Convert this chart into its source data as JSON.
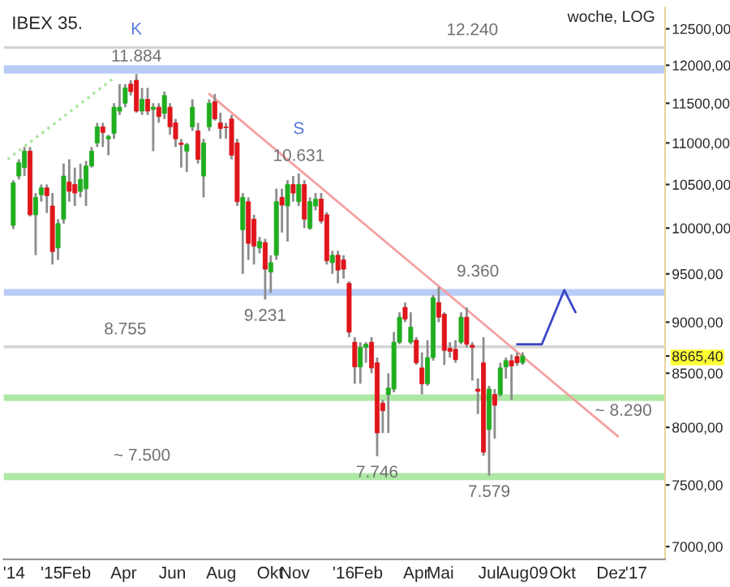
{
  "chart_data": {
    "type": "candlestick",
    "title": "IBEX 35.",
    "log": true,
    "x": [
      "2014-11-14",
      "2014-11-21",
      "2014-11-28",
      "2014-12-05",
      "2014-12-12",
      "2014-12-19",
      "2014-12-26",
      "2015-01-02",
      "2015-01-09",
      "2015-01-16",
      "2015-01-23",
      "2015-01-30",
      "2015-02-06",
      "2015-02-13",
      "2015-02-20",
      "2015-02-27",
      "2015-03-06",
      "2015-03-13",
      "2015-03-20",
      "2015-03-27",
      "2015-04-03",
      "2015-04-10",
      "2015-04-17",
      "2015-04-24",
      "2015-05-01",
      "2015-05-08",
      "2015-05-15",
      "2015-05-22",
      "2015-05-29",
      "2015-06-05",
      "2015-06-12",
      "2015-06-19",
      "2015-06-26",
      "2015-07-03",
      "2015-07-10",
      "2015-07-17",
      "2015-07-24",
      "2015-07-31",
      "2015-08-07",
      "2015-08-14",
      "2015-08-21",
      "2015-08-28",
      "2015-09-04",
      "2015-09-11",
      "2015-09-18",
      "2015-09-25",
      "2015-10-02",
      "2015-10-09",
      "2015-10-16",
      "2015-10-23",
      "2015-10-30",
      "2015-11-06",
      "2015-11-13",
      "2015-11-20",
      "2015-11-27",
      "2015-12-04",
      "2015-12-11",
      "2015-12-18",
      "2015-12-25",
      "2016-01-01",
      "2016-01-08",
      "2016-01-15",
      "2016-01-22",
      "2016-01-29",
      "2016-02-05",
      "2016-02-12",
      "2016-02-19",
      "2016-02-26",
      "2016-03-04",
      "2016-03-11",
      "2016-03-18",
      "2016-03-25",
      "2016-04-01",
      "2016-04-08",
      "2016-04-15",
      "2016-04-22",
      "2016-04-29",
      "2016-05-06",
      "2016-05-13",
      "2016-05-20",
      "2016-05-27",
      "2016-06-03",
      "2016-06-10",
      "2016-06-17",
      "2016-06-24",
      "2016-07-01",
      "2016-07-08",
      "2016-07-15",
      "2016-07-22",
      "2016-07-29",
      "2016-08-05",
      "2016-08-12"
    ],
    "ohlc": [
      [
        10030,
        10550,
        9990,
        10520
      ],
      [
        10600,
        10800,
        10560,
        10760
      ],
      [
        10700,
        10950,
        10600,
        10900
      ],
      [
        10900,
        10950,
        10130,
        10150
      ],
      [
        10150,
        10400,
        9700,
        10350
      ],
      [
        10380,
        10500,
        10300,
        10460
      ],
      [
        10460,
        10500,
        10170,
        10370
      ],
      [
        10250,
        10400,
        9600,
        9740
      ],
      [
        9780,
        10100,
        9650,
        10050
      ],
      [
        10100,
        10750,
        10050,
        10600
      ],
      [
        10530,
        10800,
        10300,
        10420
      ],
      [
        10500,
        10700,
        10250,
        10400
      ],
      [
        10420,
        10750,
        10350,
        10560
      ],
      [
        10450,
        10780,
        10250,
        10720
      ],
      [
        10720,
        10950,
        10700,
        10900
      ],
      [
        11000,
        11250,
        10950,
        11200
      ],
      [
        11200,
        11250,
        10950,
        11130
      ],
      [
        11050,
        11100,
        10850,
        11080
      ],
      [
        11120,
        11500,
        11050,
        11450
      ],
      [
        11400,
        11750,
        11350,
        11450
      ],
      [
        11500,
        11750,
        11450,
        11700
      ],
      [
        11750,
        11800,
        11600,
        11650
      ],
      [
        11800,
        11884,
        11380,
        11400
      ],
      [
        11400,
        11700,
        11350,
        11550
      ],
      [
        11550,
        11700,
        11350,
        11400
      ],
      [
        11420,
        11500,
        10900,
        11450
      ],
      [
        11450,
        11500,
        11250,
        11330
      ],
      [
        11370,
        11650,
        11300,
        11600
      ],
      [
        11450,
        11500,
        11100,
        11200
      ],
      [
        11250,
        11300,
        10950,
        11050
      ],
      [
        11000,
        11050,
        10700,
        10980
      ],
      [
        10900,
        11000,
        10650,
        10980
      ],
      [
        11200,
        11550,
        11150,
        11450
      ],
      [
        11150,
        11250,
        10750,
        10800
      ],
      [
        10600,
        11050,
        10350,
        11000
      ],
      [
        11200,
        11550,
        11150,
        11500
      ],
      [
        11520,
        11620,
        11280,
        11300
      ],
      [
        11250,
        11380,
        11050,
        11180
      ],
      [
        11200,
        11250,
        11050,
        11190
      ],
      [
        11300,
        11350,
        10800,
        10850
      ],
      [
        11000,
        11050,
        10250,
        10300
      ],
      [
        9980,
        10400,
        9500,
        10350
      ],
      [
        10300,
        10350,
        9650,
        9830
      ],
      [
        10100,
        10150,
        9600,
        9800
      ],
      [
        9780,
        9900,
        9720,
        9850
      ],
      [
        9840,
        9880,
        9231,
        9550
      ],
      [
        9520,
        9700,
        9300,
        9620
      ],
      [
        9700,
        10450,
        9650,
        10300
      ],
      [
        10350,
        10450,
        9950,
        10260
      ],
      [
        10250,
        10550,
        9850,
        10500
      ],
      [
        10500,
        10600,
        10300,
        10400
      ],
      [
        10300,
        10631,
        10250,
        10500
      ],
      [
        10500,
        10550,
        10000,
        10100
      ],
      [
        10000,
        10350,
        9980,
        10300
      ],
      [
        10250,
        10400,
        10200,
        10330
      ],
      [
        10330,
        10400,
        10050,
        10080
      ],
      [
        10150,
        10180,
        9600,
        9640
      ],
      [
        9620,
        9750,
        9500,
        9700
      ],
      [
        9700,
        9750,
        9400,
        9540
      ],
      [
        9650,
        9700,
        9450,
        9550
      ],
      [
        9400,
        9420,
        8850,
        8900
      ],
      [
        8800,
        8850,
        8400,
        8560
      ],
      [
        8560,
        8800,
        8400,
        8750
      ],
      [
        8750,
        8800,
        8600,
        8780
      ],
      [
        8800,
        8850,
        8500,
        8550
      ],
      [
        8600,
        8650,
        7746,
        7950
      ],
      [
        8220,
        8250,
        7950,
        8150
      ],
      [
        8300,
        8500,
        7950,
        8360
      ],
      [
        8350,
        8900,
        8320,
        8800
      ],
      [
        8800,
        9100,
        8780,
        9050
      ],
      [
        9150,
        9200,
        9000,
        9030
      ],
      [
        8800,
        9100,
        8780,
        8950
      ],
      [
        8820,
        8850,
        8580,
        8600
      ],
      [
        8550,
        8700,
        8300,
        8400
      ],
      [
        8400,
        8820,
        8380,
        8650
      ],
      [
        8650,
        9280,
        8620,
        9250
      ],
      [
        9200,
        9360,
        9000,
        9050
      ],
      [
        9080,
        9100,
        8580,
        8720
      ],
      [
        8740,
        8800,
        8650,
        8710
      ],
      [
        8730,
        8820,
        8600,
        8630
      ],
      [
        8800,
        9100,
        8780,
        9050
      ],
      [
        9050,
        9150,
        8750,
        8780
      ],
      [
        8770,
        8800,
        8430,
        8750
      ],
      [
        8350,
        8450,
        8120,
        8330
      ],
      [
        8600,
        8850,
        7750,
        7780
      ],
      [
        7980,
        8380,
        7579,
        8350
      ],
      [
        8300,
        8350,
        7900,
        8200
      ],
      [
        8300,
        8600,
        8280,
        8550
      ],
      [
        8560,
        8650,
        8450,
        8620
      ],
      [
        8620,
        8680,
        8250,
        8570
      ],
      [
        8660,
        8700,
        8570,
        8600
      ],
      [
        8600,
        8700,
        8580,
        8665.4
      ]
    ],
    "series": [
      {
        "type": "line",
        "x": [
          "2014-11-07",
          "2015-03-20"
        ],
        "values": [
          10800,
          11830
        ],
        "color": "#a6e69a",
        "line_style": "dotted"
      },
      {
        "type": "line",
        "x": [
          "2015-07-17",
          "2016-12-09"
        ],
        "values": [
          11620,
          7920
        ],
        "color": "#f5a0a0",
        "line_style": "solid"
      },
      {
        "type": "line",
        "x": [
          "2016-08-05",
          "2016-09-05",
          "2016-10-03",
          "2016-10-17"
        ],
        "values": [
          8780,
          8780,
          9330,
          9100
        ],
        "color": "#3a46c8",
        "line_style": "solid"
      }
    ],
    "bands": [
      {
        "axis": "y",
        "from": 11890,
        "to": 12000,
        "color": "#b9cbf7"
      },
      {
        "axis": "y",
        "from": 9270,
        "to": 9340,
        "color": "#b9cbf7"
      },
      {
        "axis": "y",
        "from": 8240,
        "to": 8300,
        "color": "#ade8a4"
      },
      {
        "axis": "y",
        "from": 7540,
        "to": 7600,
        "color": "#ade8a4"
      }
    ],
    "ref_lines": [
      {
        "axis": "y",
        "value": 12240,
        "color": "#d4d4d4"
      },
      {
        "axis": "y",
        "value": 8755,
        "color": "#d4d4d4"
      }
    ],
    "annotations": [
      "woche, LOG",
      {
        "text": "11.884",
        "x": "2015-04-17",
        "y": 11884
      },
      {
        "text": "K",
        "x": "2015-04-17",
        "y": 11884
      },
      {
        "text": "12.240",
        "x": "2016-06-10",
        "y": 12240
      },
      {
        "text": "10.631",
        "x": "2015-11-06",
        "y": 10631
      },
      {
        "text": "S",
        "x": "2015-11-06",
        "y": 10631
      },
      {
        "text": "9.231",
        "x": "2015-09-25",
        "y": 9231
      },
      {
        "text": "9.360",
        "x": "2016-06-17",
        "y": 9340
      },
      {
        "text": "8.755",
        "x": "2015-04-03",
        "y": 8755
      },
      {
        "text": "~ 8.290",
        "x": "2016-12-16",
        "y": 8300
      },
      {
        "text": "~ 7.500",
        "x": "2015-04-24",
        "y": 7600
      },
      {
        "text": "7.746",
        "x": "2016-02-12",
        "y": 7746
      },
      {
        "text": "7.579",
        "x": "2016-07-01",
        "y": 7579
      }
    ],
    "xlim": [
      "2014-11-02",
      "2017-02-06"
    ],
    "xticks": [
      {
        "value": "2014-11-15",
        "label": "'14"
      },
      {
        "value": "2015-01-01",
        "label": "'15"
      },
      {
        "value": "2015-02-01",
        "label": "Feb"
      },
      {
        "value": "2015-04-01",
        "label": "Apr"
      },
      {
        "value": "2015-06-01",
        "label": "Jun"
      },
      {
        "value": "2015-08-01",
        "label": "Aug"
      },
      {
        "value": "2015-10-01",
        "label": "Okt"
      },
      {
        "value": "2015-11-01",
        "label": "Nov"
      },
      {
        "value": "2016-01-01",
        "label": "'16"
      },
      {
        "value": "2016-02-01",
        "label": "Feb"
      },
      {
        "value": "2016-04-01",
        "label": "Apr"
      },
      {
        "value": "2016-05-01",
        "label": "Mai"
      },
      {
        "value": "2016-07-01",
        "label": "Jul"
      },
      {
        "value": "2016-08-01",
        "label": "Aug"
      },
      {
        "value": "2016-09-01",
        "label": "09"
      },
      {
        "value": "2016-10-01",
        "label": "Okt"
      },
      {
        "value": "2016-12-01",
        "label": "Dez"
      },
      {
        "value": "2017-01-01",
        "label": "'17"
      }
    ],
    "ylim": [
      6900,
      12800
    ],
    "yticks": [
      {
        "value": 7000,
        "label": "7000,00"
      },
      {
        "value": 7500,
        "label": "7500,00"
      },
      {
        "value": 8000,
        "label": "8000,00"
      },
      {
        "value": 8500,
        "label": "8500,00"
      },
      {
        "value": 8665.4,
        "label": "8665,40"
      },
      {
        "value": 9000,
        "label": "9000,00"
      },
      {
        "value": 9500,
        "label": "9500,00"
      },
      {
        "value": 10000,
        "label": "10000,00"
      },
      {
        "value": 10500,
        "label": "10500,00"
      },
      {
        "value": 11000,
        "label": "11000,00"
      },
      {
        "value": 11500,
        "label": "11500,00"
      },
      {
        "value": 12000,
        "label": "12000,00"
      },
      {
        "value": 12500,
        "label": "12500,00"
      }
    ]
  }
}
